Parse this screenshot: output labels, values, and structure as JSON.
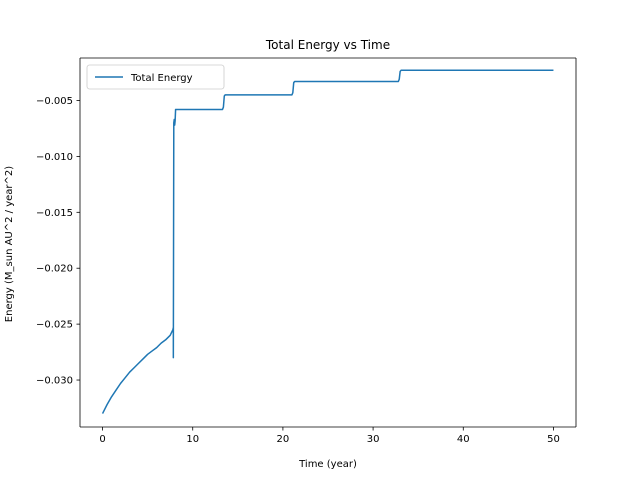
{
  "chart_data": {
    "type": "line",
    "title": "Total Energy vs Time",
    "xlabel": "Time (year)",
    "ylabel": "Energy (M_sun AU^2 / year^2)",
    "xlim": [
      -2.5,
      52.5
    ],
    "ylim": [
      -0.0342,
      -0.0012
    ],
    "xticks": [
      0,
      10,
      20,
      30,
      40,
      50
    ],
    "xtick_labels": [
      "0",
      "10",
      "20",
      "30",
      "40",
      "50"
    ],
    "yticks": [
      -0.03,
      -0.025,
      -0.02,
      -0.015,
      -0.01,
      -0.005
    ],
    "ytick_labels": [
      "−0.030",
      "−0.025",
      "−0.020",
      "−0.015",
      "−0.010",
      "−0.005"
    ],
    "grid": false,
    "legend": {
      "position": "upper-left"
    },
    "series": [
      {
        "name": "Total Energy",
        "color": "#1f77b4",
        "x": [
          0,
          0.5,
          1,
          1.5,
          2,
          2.5,
          3,
          3.5,
          4,
          4.5,
          5,
          5.5,
          6,
          6.5,
          7,
          7.5,
          7.8,
          7.85,
          7.85,
          7.9,
          7.95,
          8.0,
          8.05,
          8.1,
          8.2,
          8.3,
          13.3,
          13.4,
          13.5,
          13.6,
          21.0,
          21.1,
          21.2,
          21.3,
          32.8,
          32.9,
          33.0,
          33.1,
          50
        ],
        "y": [
          -0.033,
          -0.0322,
          -0.0315,
          -0.0309,
          -0.0303,
          -0.0298,
          -0.0293,
          -0.0289,
          -0.0285,
          -0.0281,
          -0.0277,
          -0.0274,
          -0.0271,
          -0.0267,
          -0.0264,
          -0.026,
          -0.0255,
          -0.0253,
          -0.028,
          -0.007,
          -0.0067,
          -0.0072,
          -0.0068,
          -0.0058,
          -0.0058,
          -0.0058,
          -0.0058,
          -0.0056,
          -0.0046,
          -0.0045,
          -0.0045,
          -0.0043,
          -0.0034,
          -0.0033,
          -0.0033,
          -0.0031,
          -0.0024,
          -0.0023,
          -0.0023
        ]
      }
    ]
  }
}
